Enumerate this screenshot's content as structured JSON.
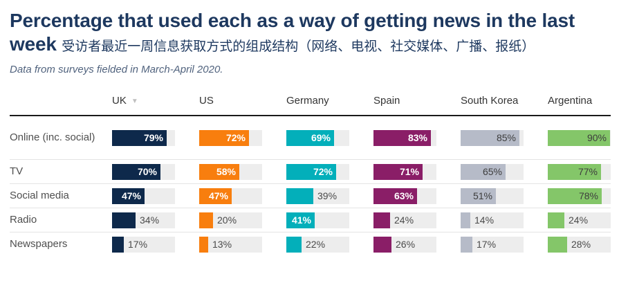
{
  "header": {
    "title_en": "Percentage that used each as a way of getting news in the last week",
    "title_zh": "受访者最近一周信息获取方式的组成结构（网络、电视、社交媒体、广播、报纸）",
    "subtitle": "Data from surveys fielded in March-April 2020."
  },
  "sort_indicator": "▼",
  "colors": {
    "title": "#1d385f",
    "subtitle": "#51637e",
    "track": "#ededed",
    "header_rule": "#1a1a1a",
    "row_rule": "#e4e4e4",
    "outside_label": "#4a4a4a"
  },
  "chart_data": {
    "type": "bar",
    "orientation": "horizontal",
    "unit": "%",
    "title": "Percentage that used each as a way of getting news in the last week",
    "subtitle": "Data from surveys fielded in March-April 2020.",
    "categories": [
      "Online (inc. social)",
      "TV",
      "Social media",
      "Radio",
      "Newspapers"
    ],
    "axis_max": 100,
    "grid": false,
    "legend_position": "column-headers",
    "series": [
      {
        "name": "UK",
        "color": "#0e294b",
        "label_on_bar": "#ffffff",
        "sorted": true,
        "values": [
          79,
          70,
          47,
          34,
          17
        ]
      },
      {
        "name": "US",
        "color": "#f87e0e",
        "label_on_bar": "#ffffff",
        "sorted": false,
        "values": [
          72,
          58,
          47,
          20,
          13
        ]
      },
      {
        "name": "Germany",
        "color": "#03afba",
        "label_on_bar": "#ffffff",
        "sorted": false,
        "values": [
          69,
          72,
          39,
          41,
          22
        ]
      },
      {
        "name": "Spain",
        "color": "#8a1e67",
        "label_on_bar": "#ffffff",
        "sorted": false,
        "values": [
          83,
          71,
          63,
          24,
          26
        ]
      },
      {
        "name": "South Korea",
        "color": "#b6bbc8",
        "label_on_bar": "#3d3d3d",
        "sorted": false,
        "values": [
          85,
          65,
          51,
          14,
          17
        ]
      },
      {
        "name": "Argentina",
        "color": "#84c669",
        "label_on_bar": "#3d3d3d",
        "sorted": false,
        "values": [
          90,
          77,
          78,
          24,
          28
        ]
      }
    ]
  }
}
